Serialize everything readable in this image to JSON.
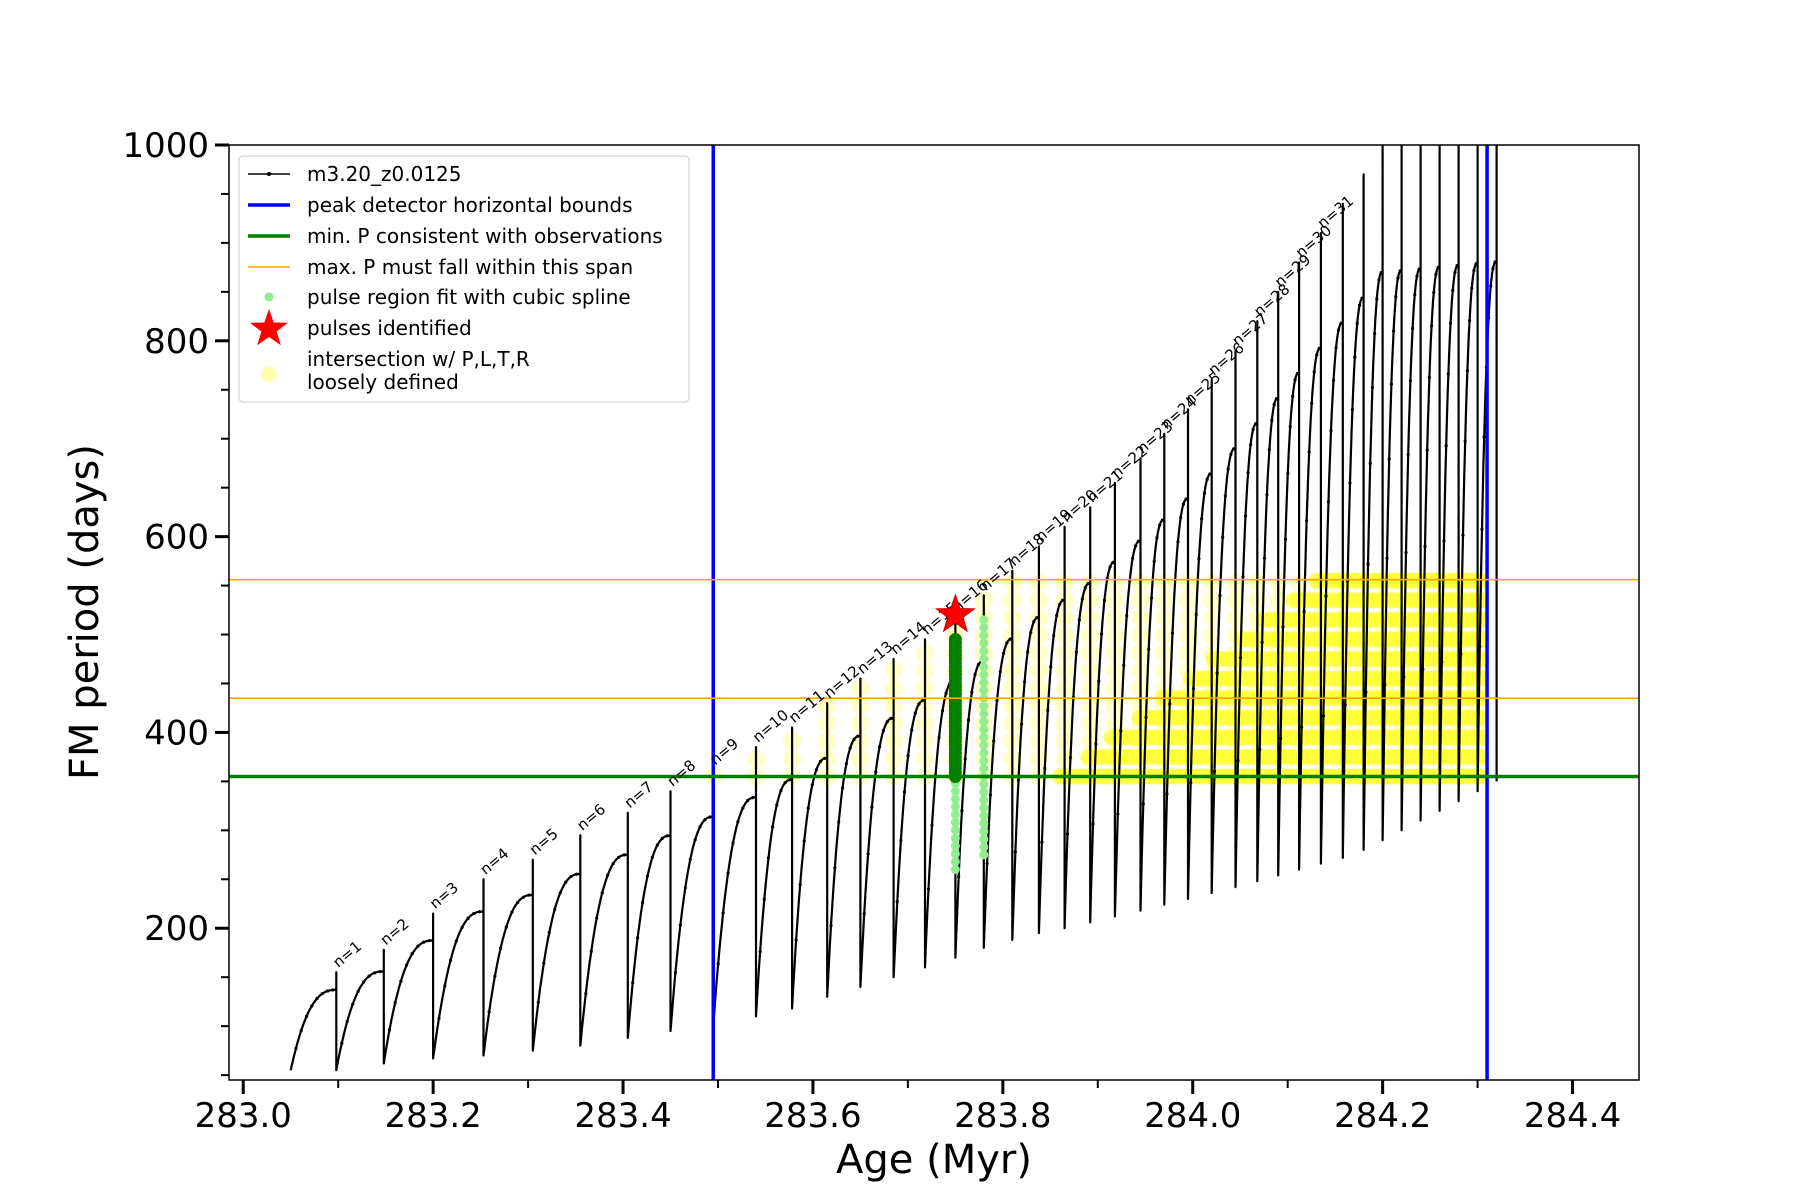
{
  "chart_data": {
    "type": "line",
    "title": "",
    "xlabel": "Age (Myr)",
    "ylabel": "FM period (days)",
    "xlim": [
      282.985,
      284.47
    ],
    "ylim": [
      45,
      1000
    ],
    "xticks": [
      "283.0",
      "283.2",
      "283.4",
      "283.6",
      "283.8",
      "284.0",
      "284.2",
      "284.4"
    ],
    "yticks": [
      "200",
      "400",
      "600",
      "800",
      "1000"
    ],
    "grid": false,
    "legend_position": "top-left",
    "legend": [
      {
        "name": "m3.20_z0.0125",
        "kind": "line-dots",
        "color": "#000000"
      },
      {
        "name": "peak detector horizontal bounds",
        "kind": "line",
        "color": "#0000ff"
      },
      {
        "name": "min. P consistent with observations",
        "kind": "line",
        "color": "#008000"
      },
      {
        "name": "max. P must fall within this span",
        "kind": "thin-line",
        "color": "#ffa500"
      },
      {
        "name": "pulse region fit with cubic spline",
        "kind": "dot",
        "color": "#90ee90"
      },
      {
        "name": "pulses identified",
        "kind": "star",
        "color": "#ff0000"
      },
      {
        "name": "intersection w/ P,L,T,R",
        "name2": "loosely defined",
        "kind": "dot-big",
        "color": "#ffff99"
      }
    ],
    "vertical_bounds": [
      283.495,
      284.31
    ],
    "min_period": 355,
    "max_period_span": [
      435,
      556
    ],
    "pulse_identified": {
      "x": 283.75,
      "y": 520
    },
    "track": {
      "start_age": 283.05,
      "start_period": 55,
      "pulses": [
        {
          "n": 1,
          "age": 283.098,
          "peak": 155,
          "base": 55
        },
        {
          "n": 2,
          "age": 283.148,
          "peak": 178,
          "base": 62
        },
        {
          "n": 3,
          "age": 283.2,
          "peak": 215,
          "base": 67
        },
        {
          "n": 4,
          "age": 283.253,
          "peak": 250,
          "base": 70
        },
        {
          "n": 5,
          "age": 283.305,
          "peak": 270,
          "base": 75
        },
        {
          "n": 6,
          "age": 283.355,
          "peak": 295,
          "base": 80
        },
        {
          "n": 7,
          "age": 283.405,
          "peak": 318,
          "base": 88
        },
        {
          "n": 8,
          "age": 283.45,
          "peak": 340,
          "base": 95
        },
        {
          "n": 9,
          "age": 283.495,
          "peak": 362,
          "base": 100
        },
        {
          "n": 10,
          "age": 283.54,
          "peak": 385,
          "base": 110
        },
        {
          "n": 11,
          "age": 283.578,
          "peak": 405,
          "base": 118
        },
        {
          "n": 12,
          "age": 283.615,
          "peak": 430,
          "base": 130
        },
        {
          "n": 13,
          "age": 283.65,
          "peak": 455,
          "base": 140
        },
        {
          "n": 14,
          "age": 283.685,
          "peak": 475,
          "base": 150
        },
        {
          "n": 15,
          "age": 283.718,
          "peak": 495,
          "base": 160
        },
        {
          "n": 16,
          "age": 283.75,
          "peak": 518,
          "base": 170
        },
        {
          "n": 17,
          "age": 283.78,
          "peak": 540,
          "base": 180
        },
        {
          "n": 18,
          "age": 283.81,
          "peak": 565,
          "base": 188
        },
        {
          "n": 19,
          "age": 283.838,
          "peak": 590,
          "base": 195
        },
        {
          "n": 20,
          "age": 283.865,
          "peak": 610,
          "base": 200
        },
        {
          "n": 21,
          "age": 283.892,
          "peak": 630,
          "base": 206
        },
        {
          "n": 22,
          "age": 283.918,
          "peak": 655,
          "base": 212
        },
        {
          "n": 23,
          "age": 283.945,
          "peak": 680,
          "base": 218
        },
        {
          "n": 24,
          "age": 283.97,
          "peak": 705,
          "base": 224
        },
        {
          "n": 25,
          "age": 283.995,
          "peak": 730,
          "base": 230
        },
        {
          "n": 26,
          "age": 284.02,
          "peak": 760,
          "base": 236
        },
        {
          "n": 27,
          "age": 284.045,
          "peak": 790,
          "base": 242
        },
        {
          "n": 28,
          "age": 284.068,
          "peak": 820,
          "base": 248
        },
        {
          "n": 29,
          "age": 284.09,
          "peak": 850,
          "base": 254
        },
        {
          "n": 30,
          "age": 284.112,
          "peak": 880,
          "base": 260
        },
        {
          "n": 31,
          "age": 284.135,
          "peak": 910,
          "base": 266
        },
        {
          "n": 32,
          "age": 284.158,
          "peak": 940,
          "base": 272
        },
        {
          "n": 33,
          "age": 284.18,
          "peak": 970,
          "base": 280
        },
        {
          "n": 34,
          "age": 284.2,
          "peak": 1000,
          "base": 290
        },
        {
          "n": 35,
          "age": 284.22,
          "peak": 1000,
          "base": 300
        },
        {
          "n": 36,
          "age": 284.24,
          "peak": 1000,
          "base": 310
        },
        {
          "n": 37,
          "age": 284.26,
          "peak": 1000,
          "base": 320
        },
        {
          "n": 38,
          "age": 284.28,
          "peak": 1000,
          "base": 330
        },
        {
          "n": 39,
          "age": 284.3,
          "peak": 1000,
          "base": 340
        },
        {
          "n": 40,
          "age": 284.32,
          "peak": 1000,
          "base": 350
        }
      ],
      "pulse_labels": [
        "n=1",
        "n=2",
        "n=3",
        "n=4",
        "n=5",
        "n=6",
        "n=7",
        "n=8",
        "n=9",
        "n=10",
        "n=11",
        "n=12",
        "n=13",
        "n=14",
        "n=15",
        "n=16",
        "n=17",
        "n=18",
        "n=19",
        "n=20",
        "n=21",
        "n=22",
        "n=23",
        "n=24",
        "n=25",
        "n=26",
        "n=27",
        "n=28",
        "n=29",
        "n=30",
        "n=31"
      ]
    }
  }
}
